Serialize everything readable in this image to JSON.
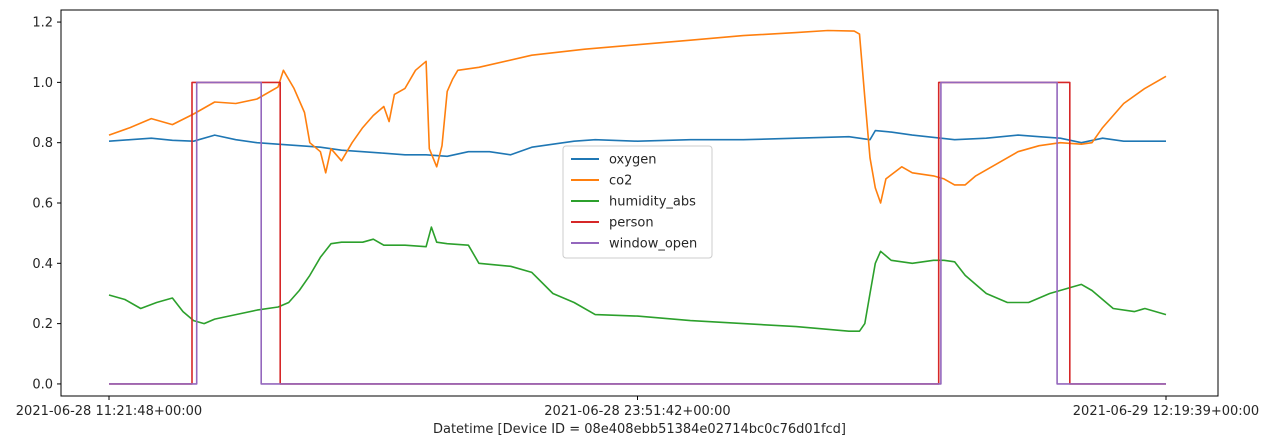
{
  "chart_data": {
    "type": "line",
    "xlabel": "Datetime [Device ID = 08e408ebb51384e02714bc0c76d01fcd]",
    "ylabel": "",
    "title": "",
    "xlim": [
      0,
      1
    ],
    "ylim": [
      -0.04,
      1.24
    ],
    "x_ticks": [
      {
        "pos": 0.0,
        "label": "2021-06-28 11:21:48+00:00"
      },
      {
        "pos": 0.5,
        "label": "2021-06-28 23:51:42+00:00"
      },
      {
        "pos": 1.0,
        "label": "2021-06-29 12:19:39+00:00"
      }
    ],
    "y_ticks": [
      0.0,
      0.2,
      0.4,
      0.6,
      0.8,
      1.0,
      1.2
    ],
    "y_tick_labels": [
      "0.0",
      "0.2",
      "0.4",
      "0.6",
      "0.8",
      "1.0",
      "1.2"
    ],
    "legend": {
      "placement": "center",
      "entries": [
        "oxygen",
        "co2",
        "humidity_abs",
        "person",
        "window_open"
      ]
    },
    "grid": false,
    "series": [
      {
        "name": "oxygen",
        "color": "#1f77b4",
        "points": [
          [
            0,
            0.805
          ],
          [
            0.02,
            0.81
          ],
          [
            0.04,
            0.815
          ],
          [
            0.06,
            0.808
          ],
          [
            0.08,
            0.805
          ],
          [
            0.1,
            0.825
          ],
          [
            0.12,
            0.81
          ],
          [
            0.14,
            0.8
          ],
          [
            0.16,
            0.795
          ],
          [
            0.18,
            0.79
          ],
          [
            0.2,
            0.785
          ],
          [
            0.22,
            0.775
          ],
          [
            0.24,
            0.77
          ],
          [
            0.26,
            0.765
          ],
          [
            0.28,
            0.76
          ],
          [
            0.3,
            0.76
          ],
          [
            0.32,
            0.755
          ],
          [
            0.34,
            0.77
          ],
          [
            0.36,
            0.77
          ],
          [
            0.38,
            0.76
          ],
          [
            0.4,
            0.785
          ],
          [
            0.42,
            0.795
          ],
          [
            0.44,
            0.805
          ],
          [
            0.46,
            0.81
          ],
          [
            0.5,
            0.805
          ],
          [
            0.55,
            0.81
          ],
          [
            0.6,
            0.81
          ],
          [
            0.65,
            0.815
          ],
          [
            0.7,
            0.82
          ],
          [
            0.72,
            0.81
          ],
          [
            0.725,
            0.84
          ],
          [
            0.74,
            0.835
          ],
          [
            0.76,
            0.825
          ],
          [
            0.8,
            0.81
          ],
          [
            0.83,
            0.815
          ],
          [
            0.86,
            0.825
          ],
          [
            0.88,
            0.82
          ],
          [
            0.9,
            0.815
          ],
          [
            0.92,
            0.8
          ],
          [
            0.94,
            0.815
          ],
          [
            0.96,
            0.805
          ],
          [
            1.0,
            0.805
          ]
        ]
      },
      {
        "name": "co2",
        "color": "#ff7f0e",
        "points": [
          [
            0,
            0.825
          ],
          [
            0.02,
            0.85
          ],
          [
            0.04,
            0.88
          ],
          [
            0.06,
            0.86
          ],
          [
            0.08,
            0.895
          ],
          [
            0.1,
            0.935
          ],
          [
            0.12,
            0.93
          ],
          [
            0.14,
            0.945
          ],
          [
            0.16,
            0.985
          ],
          [
            0.165,
            1.04
          ],
          [
            0.175,
            0.98
          ],
          [
            0.185,
            0.9
          ],
          [
            0.19,
            0.8
          ],
          [
            0.2,
            0.77
          ],
          [
            0.205,
            0.7
          ],
          [
            0.21,
            0.78
          ],
          [
            0.22,
            0.74
          ],
          [
            0.23,
            0.8
          ],
          [
            0.24,
            0.85
          ],
          [
            0.25,
            0.89
          ],
          [
            0.26,
            0.92
          ],
          [
            0.265,
            0.87
          ],
          [
            0.27,
            0.96
          ],
          [
            0.28,
            0.98
          ],
          [
            0.29,
            1.04
          ],
          [
            0.3,
            1.07
          ],
          [
            0.303,
            0.78
          ],
          [
            0.31,
            0.72
          ],
          [
            0.315,
            0.79
          ],
          [
            0.32,
            0.97
          ],
          [
            0.325,
            1.01
          ],
          [
            0.33,
            1.04
          ],
          [
            0.35,
            1.05
          ],
          [
            0.4,
            1.09
          ],
          [
            0.45,
            1.11
          ],
          [
            0.5,
            1.125
          ],
          [
            0.55,
            1.14
          ],
          [
            0.6,
            1.155
          ],
          [
            0.65,
            1.165
          ],
          [
            0.68,
            1.172
          ],
          [
            0.705,
            1.17
          ],
          [
            0.71,
            1.16
          ],
          [
            0.715,
            0.95
          ],
          [
            0.72,
            0.75
          ],
          [
            0.725,
            0.65
          ],
          [
            0.73,
            0.6
          ],
          [
            0.735,
            0.68
          ],
          [
            0.75,
            0.72
          ],
          [
            0.76,
            0.7
          ],
          [
            0.78,
            0.69
          ],
          [
            0.79,
            0.68
          ],
          [
            0.8,
            0.66
          ],
          [
            0.81,
            0.66
          ],
          [
            0.82,
            0.69
          ],
          [
            0.84,
            0.73
          ],
          [
            0.86,
            0.77
          ],
          [
            0.88,
            0.79
          ],
          [
            0.9,
            0.8
          ],
          [
            0.92,
            0.795
          ],
          [
            0.93,
            0.8
          ],
          [
            0.94,
            0.85
          ],
          [
            0.96,
            0.93
          ],
          [
            0.98,
            0.98
          ],
          [
            1.0,
            1.02
          ]
        ]
      },
      {
        "name": "humidity_abs",
        "color": "#2ca02c",
        "points": [
          [
            0,
            0.295
          ],
          [
            0.015,
            0.28
          ],
          [
            0.03,
            0.25
          ],
          [
            0.045,
            0.27
          ],
          [
            0.06,
            0.285
          ],
          [
            0.07,
            0.24
          ],
          [
            0.08,
            0.21
          ],
          [
            0.09,
            0.2
          ],
          [
            0.1,
            0.215
          ],
          [
            0.12,
            0.23
          ],
          [
            0.14,
            0.245
          ],
          [
            0.16,
            0.255
          ],
          [
            0.17,
            0.27
          ],
          [
            0.18,
            0.31
          ],
          [
            0.19,
            0.36
          ],
          [
            0.2,
            0.42
          ],
          [
            0.21,
            0.465
          ],
          [
            0.22,
            0.47
          ],
          [
            0.24,
            0.47
          ],
          [
            0.25,
            0.48
          ],
          [
            0.26,
            0.46
          ],
          [
            0.28,
            0.46
          ],
          [
            0.3,
            0.455
          ],
          [
            0.305,
            0.52
          ],
          [
            0.31,
            0.47
          ],
          [
            0.32,
            0.465
          ],
          [
            0.34,
            0.46
          ],
          [
            0.35,
            0.4
          ],
          [
            0.38,
            0.39
          ],
          [
            0.4,
            0.37
          ],
          [
            0.42,
            0.3
          ],
          [
            0.44,
            0.27
          ],
          [
            0.46,
            0.23
          ],
          [
            0.5,
            0.225
          ],
          [
            0.55,
            0.21
          ],
          [
            0.6,
            0.2
          ],
          [
            0.65,
            0.19
          ],
          [
            0.7,
            0.175
          ],
          [
            0.71,
            0.175
          ],
          [
            0.715,
            0.2
          ],
          [
            0.72,
            0.3
          ],
          [
            0.725,
            0.4
          ],
          [
            0.73,
            0.44
          ],
          [
            0.74,
            0.41
          ],
          [
            0.76,
            0.4
          ],
          [
            0.78,
            0.41
          ],
          [
            0.79,
            0.41
          ],
          [
            0.8,
            0.405
          ],
          [
            0.81,
            0.36
          ],
          [
            0.83,
            0.3
          ],
          [
            0.85,
            0.27
          ],
          [
            0.87,
            0.27
          ],
          [
            0.89,
            0.3
          ],
          [
            0.91,
            0.32
          ],
          [
            0.92,
            0.33
          ],
          [
            0.93,
            0.31
          ],
          [
            0.95,
            0.25
          ],
          [
            0.97,
            0.24
          ],
          [
            0.98,
            0.25
          ],
          [
            1.0,
            0.23
          ]
        ]
      },
      {
        "name": "person",
        "color": "#d62728",
        "points": [
          [
            0,
            0
          ],
          [
            0.0785,
            0
          ],
          [
            0.0785,
            1
          ],
          [
            0.162,
            1
          ],
          [
            0.162,
            0
          ],
          [
            0.785,
            0
          ],
          [
            0.785,
            1
          ],
          [
            0.909,
            1
          ],
          [
            0.909,
            0
          ],
          [
            1.0,
            0
          ]
        ]
      },
      {
        "name": "window_open",
        "color": "#9467bd",
        "points": [
          [
            0,
            0
          ],
          [
            0.083,
            0
          ],
          [
            0.083,
            1
          ],
          [
            0.144,
            1
          ],
          [
            0.144,
            0
          ],
          [
            0.787,
            0
          ],
          [
            0.787,
            1
          ],
          [
            0.897,
            1
          ],
          [
            0.897,
            0
          ],
          [
            1.0,
            0
          ]
        ]
      }
    ]
  }
}
